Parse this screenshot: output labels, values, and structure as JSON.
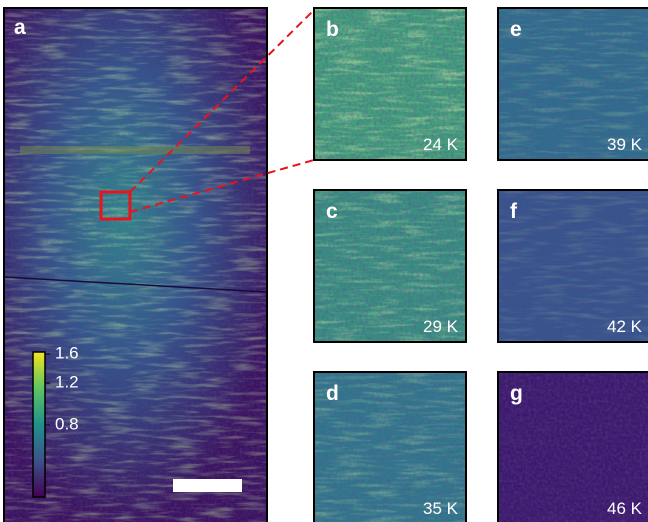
{
  "panels": [
    {
      "label": "a"
    },
    {
      "label": "b",
      "temperature": "24 K"
    },
    {
      "label": "c",
      "temperature": "29 K"
    },
    {
      "label": "d",
      "temperature": "35 K"
    },
    {
      "label": "e",
      "temperature": "39 K"
    },
    {
      "label": "f",
      "temperature": "42 K"
    },
    {
      "label": "g",
      "temperature": "46 K"
    }
  ],
  "colorbar": {
    "ticks": [
      1.6,
      1.2,
      0.8
    ]
  }
}
